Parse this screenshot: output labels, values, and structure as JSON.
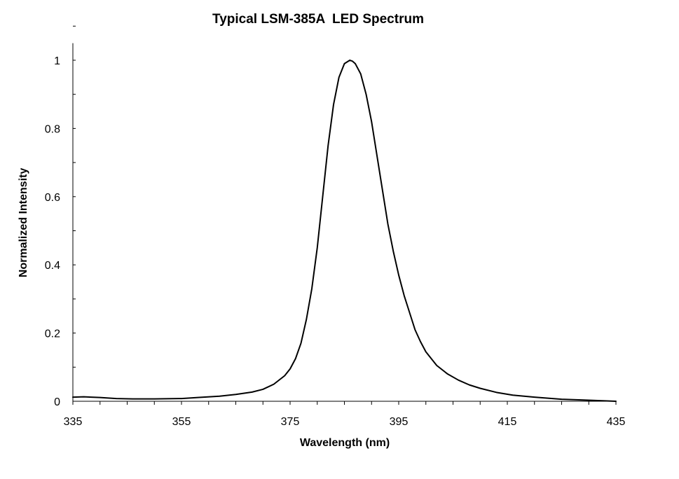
{
  "chart_data": {
    "type": "line",
    "title": "Typical LSM-385A  LED Spectrum",
    "xlabel": "Wavelength (nm)",
    "ylabel": "Normalized Intensity",
    "xlim": [
      335,
      435
    ],
    "ylim": [
      0,
      1.05
    ],
    "x_ticks": [
      335,
      355,
      375,
      395,
      415,
      435
    ],
    "x_tick_labels": [
      "335",
      "355",
      "375",
      "395",
      "415",
      "435"
    ],
    "x_minor_step": 5,
    "y_ticks": [
      0,
      0.2,
      0.4,
      0.6,
      0.8,
      1
    ],
    "y_tick_labels": [
      "0",
      "0.2",
      "0.4",
      "0.6",
      "0.8",
      "1"
    ],
    "y_minor_step": 0.1,
    "grid": false,
    "legend": "none",
    "line_color": "#000000",
    "series": [
      {
        "x": [
          335,
          337,
          340,
          343,
          346,
          350,
          355,
          358,
          362,
          365,
          368,
          370,
          372,
          374,
          375,
          376,
          377,
          378,
          379,
          380,
          381,
          382,
          383,
          384,
          385,
          386,
          386.5,
          387,
          388,
          389,
          390,
          391,
          392,
          393,
          394,
          395,
          396,
          397,
          398,
          399,
          400,
          402,
          404,
          406,
          408,
          410,
          413,
          416,
          420,
          425,
          430,
          435
        ],
        "y": [
          0.012,
          0.013,
          0.011,
          0.008,
          0.007,
          0.007,
          0.008,
          0.011,
          0.015,
          0.02,
          0.027,
          0.035,
          0.05,
          0.075,
          0.095,
          0.125,
          0.17,
          0.24,
          0.33,
          0.45,
          0.6,
          0.75,
          0.87,
          0.95,
          0.99,
          1.0,
          0.997,
          0.99,
          0.96,
          0.9,
          0.82,
          0.72,
          0.62,
          0.52,
          0.44,
          0.37,
          0.31,
          0.26,
          0.21,
          0.175,
          0.145,
          0.105,
          0.08,
          0.062,
          0.048,
          0.038,
          0.026,
          0.018,
          0.012,
          0.006,
          0.003,
          0.0
        ]
      }
    ]
  }
}
